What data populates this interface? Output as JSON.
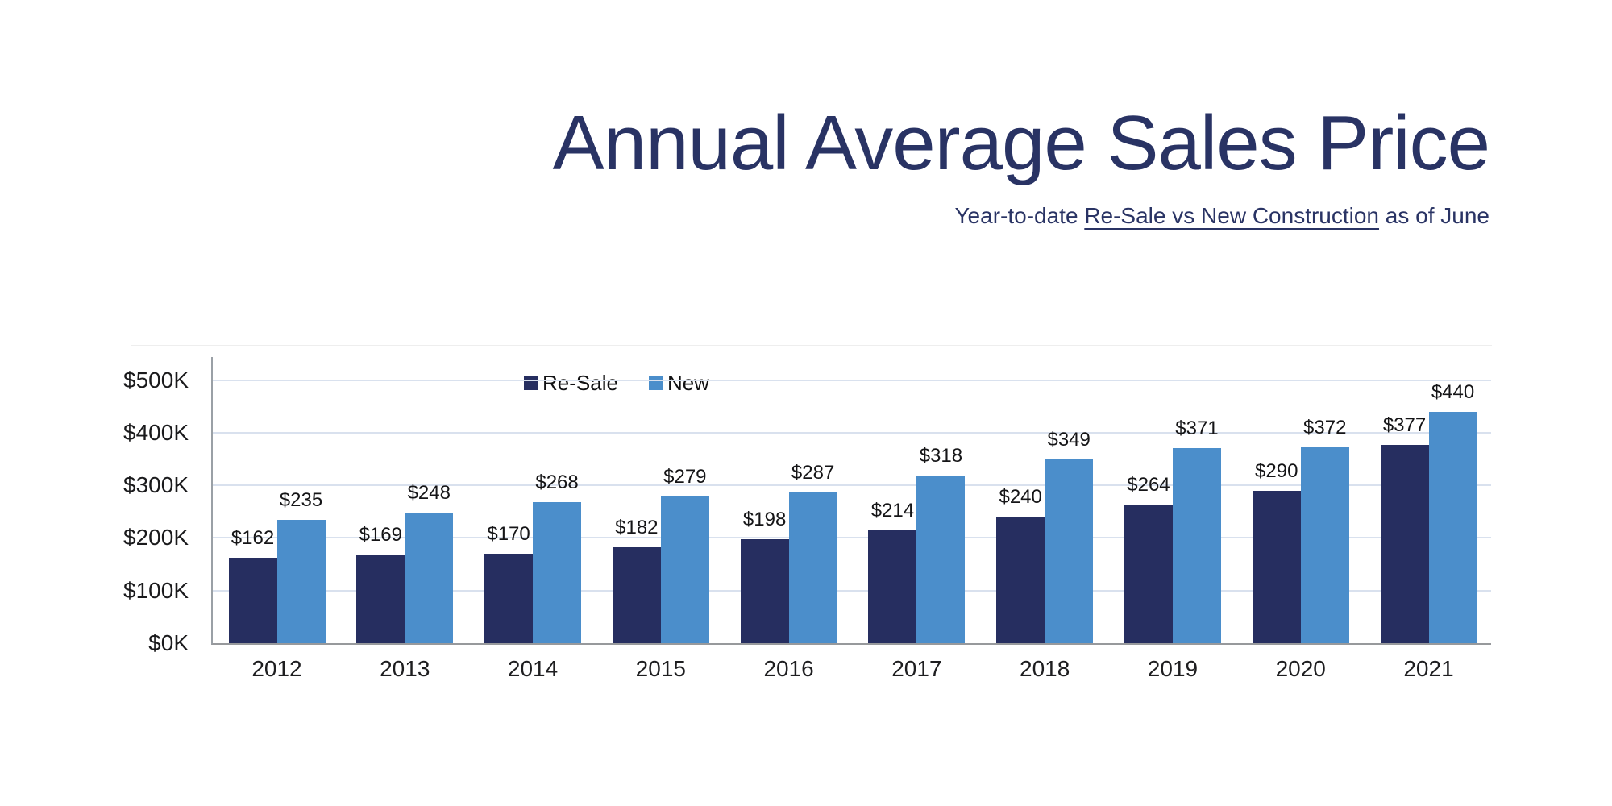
{
  "header": {
    "title": "Annual Average Sales Price",
    "subtitle_prefix": "Year-to-date ",
    "subtitle_underlined": "Re-Sale vs New Construction",
    "subtitle_suffix": " as of June"
  },
  "legend": {
    "items": [
      {
        "label": "Re-Sale",
        "color": "#262E60"
      },
      {
        "label": "New",
        "color": "#4B8ECB"
      }
    ]
  },
  "chart_data": {
    "type": "bar",
    "title": "Annual Average Sales Price",
    "subtitle": "Year-to-date Re-Sale vs New Construction as of June",
    "categories": [
      "2012",
      "2013",
      "2014",
      "2015",
      "2016",
      "2017",
      "2018",
      "2019",
      "2020",
      "2021"
    ],
    "series": [
      {
        "name": "Re-Sale",
        "color": "#262E60",
        "values": [
          162,
          169,
          170,
          182,
          198,
          214,
          240,
          264,
          290,
          377
        ]
      },
      {
        "name": "New",
        "color": "#4B8ECB",
        "values": [
          235,
          248,
          268,
          279,
          287,
          318,
          349,
          371,
          372,
          440
        ]
      }
    ],
    "value_prefix": "$",
    "data_labels": true,
    "y_ticks": [
      "$0K",
      "$100K",
      "$200K",
      "$300K",
      "$400K",
      "$500K"
    ],
    "ylim": [
      0,
      500
    ],
    "xlabel": "",
    "ylabel": "",
    "grid": true,
    "legend_position": "top-center"
  },
  "colors": {
    "title": "#293364",
    "grid": "#D9E1EE",
    "axis": "#9AA0A6",
    "baseline": "#97999C",
    "background": "#FFFFFF"
  }
}
